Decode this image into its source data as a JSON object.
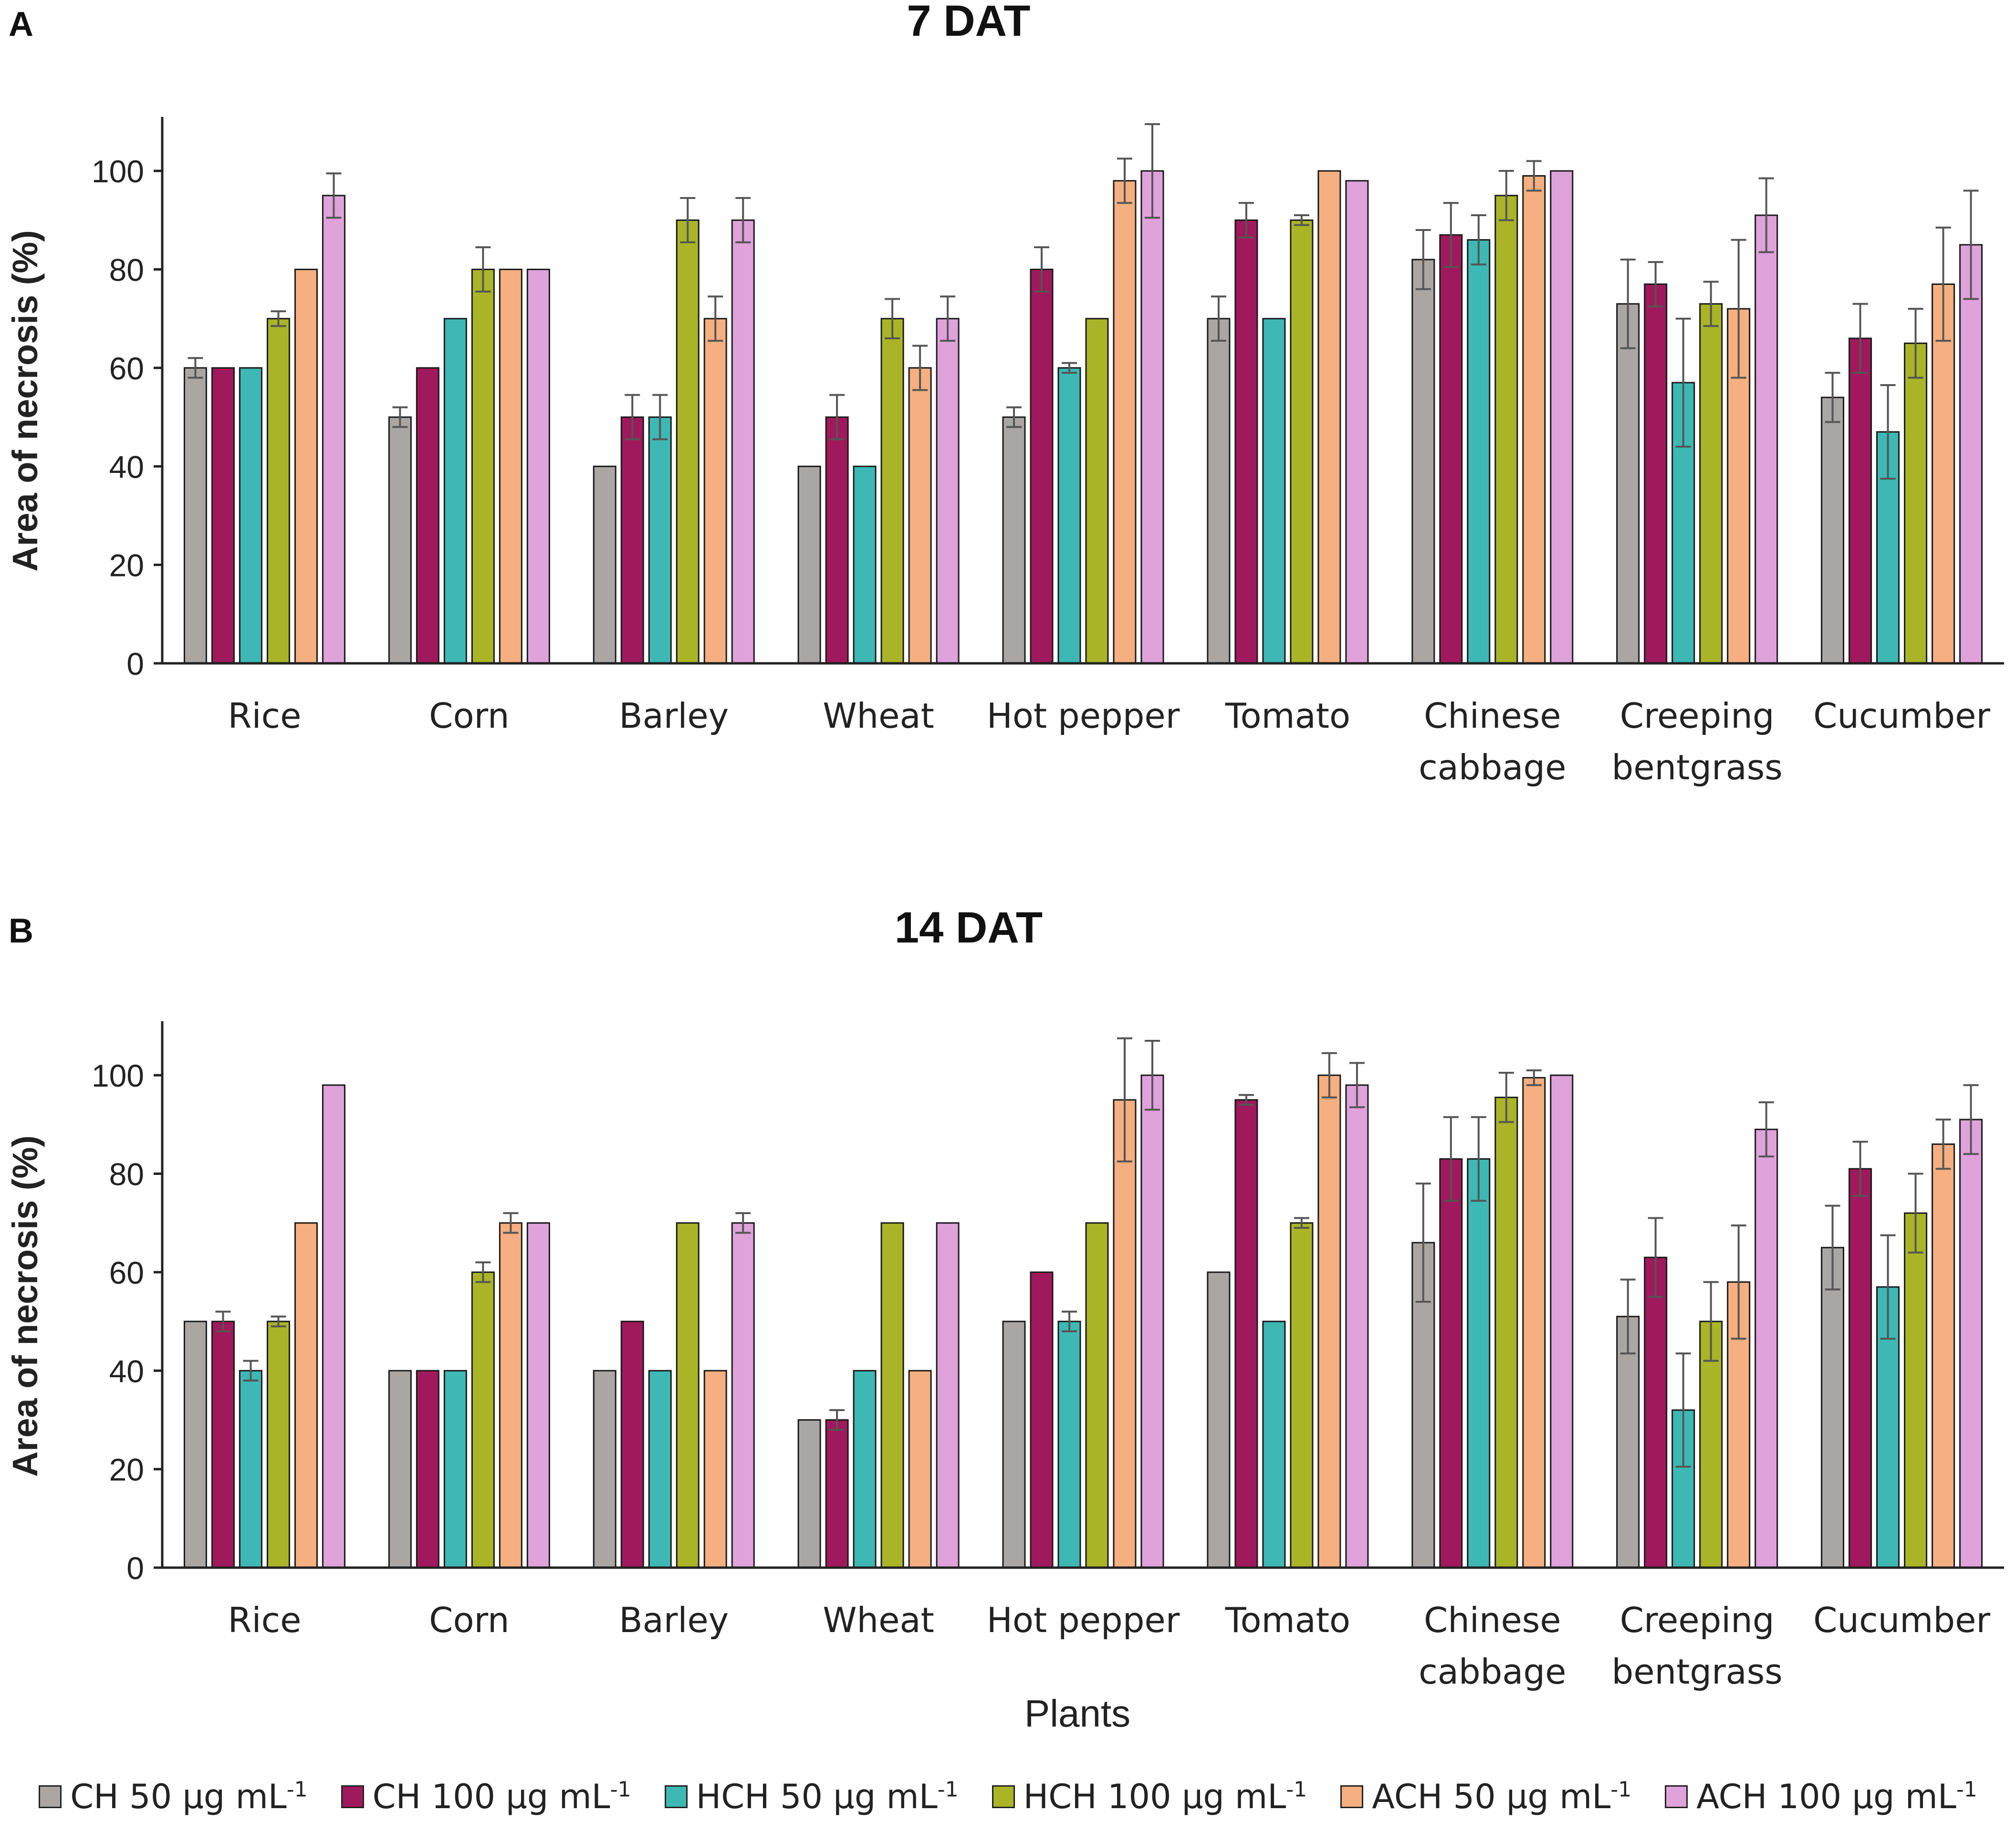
{
  "figure": {
    "x_axis_label": "Plants",
    "y_axis_label": "Area of necrosis (%)"
  },
  "series_meta": [
    {
      "name": "CH 50 µg mL-1",
      "label_base": "CH 50 µg mL",
      "label_sup": "-1",
      "color": "#A9A6A4"
    },
    {
      "name": "CH 100 µg mL-1",
      "label_base": "CH 100 µg mL",
      "label_sup": "-1",
      "color": "#A0195C"
    },
    {
      "name": "HCH 50 µg mL-1",
      "label_base": "HCH 50 µg mL",
      "label_sup": "-1",
      "color": "#3DB8B5"
    },
    {
      "name": "HCH 100 µg mL-1",
      "label_base": "HCH 100 µg mL",
      "label_sup": "-1",
      "color": "#A9B526"
    },
    {
      "name": "ACH 50 µg mL-1",
      "label_base": "ACH 50 µg mL",
      "label_sup": "-1",
      "color": "#F5AF80"
    },
    {
      "name": "ACH 100 µg mL-1",
      "label_base": "ACH 100 µg mL",
      "label_sup": "-1",
      "color": "#DFA2DB"
    }
  ],
  "chart_data": [
    {
      "type": "bar",
      "panel": "A",
      "title": "7 DAT",
      "xlabel": "",
      "ylabel": "Area of necrosis (%)",
      "ylim": [
        0,
        110
      ],
      "yticks": [
        0,
        20,
        40,
        60,
        80,
        100
      ],
      "categories": [
        [
          "Rice"
        ],
        [
          "Corn"
        ],
        [
          "Barley"
        ],
        [
          "Wheat"
        ],
        [
          "Hot pepper"
        ],
        [
          "Tomato"
        ],
        [
          "Chinese",
          "cabbage"
        ],
        [
          "Creeping",
          "bentgrass"
        ],
        [
          "Cucumber"
        ]
      ],
      "series": [
        {
          "name": "CH 50 µg mL-1",
          "values": [
            60,
            50,
            40,
            40,
            50,
            70,
            82,
            73,
            54
          ],
          "errors": [
            2,
            2,
            0,
            0,
            2,
            4.5,
            6,
            9,
            5
          ]
        },
        {
          "name": "CH 100 µg mL-1",
          "values": [
            60,
            60,
            50,
            50,
            80,
            90,
            87,
            77,
            66
          ],
          "errors": [
            0,
            0,
            4.5,
            4.5,
            4.5,
            3.5,
            6.5,
            4.5,
            7
          ]
        },
        {
          "name": "HCH 50 µg mL-1",
          "values": [
            60,
            70,
            50,
            40,
            60,
            70,
            86,
            57,
            47
          ],
          "errors": [
            0,
            0,
            4.5,
            0,
            1,
            0,
            5,
            13,
            9.5
          ]
        },
        {
          "name": "HCH 100 µg mL-1",
          "values": [
            70,
            80,
            90,
            70,
            70,
            90,
            95,
            73,
            65
          ],
          "errors": [
            1.5,
            4.5,
            4.5,
            4,
            0,
            1,
            5,
            4.5,
            7
          ]
        },
        {
          "name": "ACH 50 µg mL-1",
          "values": [
            80,
            80,
            70,
            60,
            98,
            100,
            99,
            72,
            77
          ],
          "errors": [
            0,
            0,
            4.5,
            4.5,
            4.5,
            0,
            3,
            14,
            11.5
          ]
        },
        {
          "name": "ACH 100 µg mL-1",
          "values": [
            95,
            80,
            90,
            70,
            100,
            98,
            100,
            91,
            85
          ],
          "errors": [
            4.5,
            0,
            4.5,
            4.5,
            9.5,
            0,
            0,
            7.5,
            11
          ]
        }
      ]
    },
    {
      "type": "bar",
      "panel": "B",
      "title": "14 DAT",
      "xlabel": "Plants",
      "ylabel": "Area of necrosis (%)",
      "ylim": [
        0,
        110
      ],
      "yticks": [
        0,
        20,
        40,
        60,
        80,
        100
      ],
      "categories": [
        [
          "Rice"
        ],
        [
          "Corn"
        ],
        [
          "Barley"
        ],
        [
          "Wheat"
        ],
        [
          "Hot pepper"
        ],
        [
          "Tomato"
        ],
        [
          "Chinese",
          "cabbage"
        ],
        [
          "Creeping",
          "bentgrass"
        ],
        [
          "Cucumber"
        ]
      ],
      "series": [
        {
          "name": "CH 50 µg mL-1",
          "values": [
            50,
            40,
            40,
            30,
            50,
            60,
            66,
            51,
            65
          ],
          "errors": [
            0,
            0,
            0,
            0,
            0,
            0,
            12,
            7.5,
            8.5
          ]
        },
        {
          "name": "CH 100 µg mL-1",
          "values": [
            50,
            40,
            50,
            30,
            60,
            95,
            83,
            63,
            81
          ],
          "errors": [
            2,
            0,
            0,
            2,
            0,
            1,
            8.5,
            8,
            5.5
          ]
        },
        {
          "name": "HCH 50 µg mL-1",
          "values": [
            40,
            40,
            40,
            40,
            50,
            50,
            83,
            32,
            57
          ],
          "errors": [
            2,
            0,
            0,
            0,
            2,
            0,
            8.5,
            11.5,
            10.5
          ]
        },
        {
          "name": "HCH 100 µg mL-1",
          "values": [
            50,
            60,
            70,
            70,
            70,
            70,
            95.5,
            50,
            72
          ],
          "errors": [
            1,
            2,
            0,
            0,
            0,
            1,
            5,
            8,
            8
          ]
        },
        {
          "name": "ACH 50 µg mL-1",
          "values": [
            70,
            70,
            40,
            40,
            95,
            100,
            99.5,
            58,
            86
          ],
          "errors": [
            0,
            2,
            0,
            0,
            12.5,
            4.5,
            1.5,
            11.5,
            5
          ]
        },
        {
          "name": "ACH 100 µg mL-1",
          "values": [
            98,
            70,
            70,
            70,
            100,
            98,
            100,
            89,
            91
          ],
          "errors": [
            0,
            0,
            2,
            0,
            7,
            4.5,
            0,
            5.5,
            7
          ]
        }
      ]
    }
  ]
}
